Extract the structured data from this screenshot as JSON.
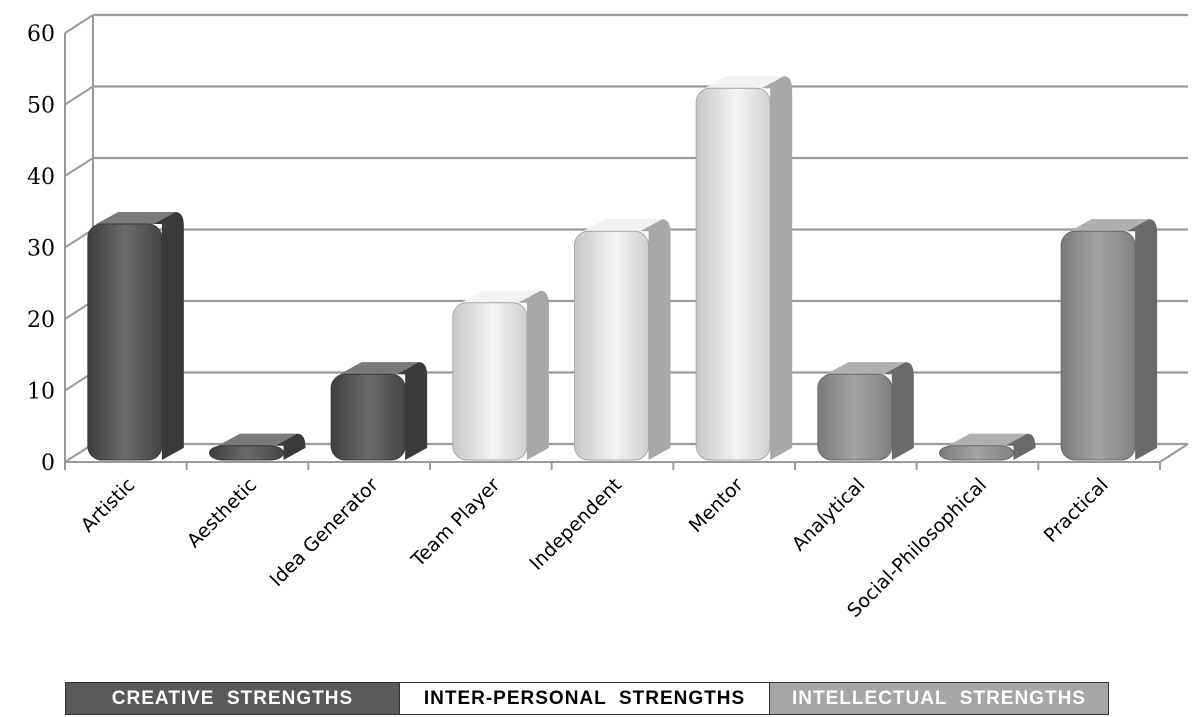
{
  "chart_data": {
    "type": "bar",
    "categories": [
      "Artistic",
      "Aesthetic",
      "Idea Generator",
      "Team Player",
      "Independent",
      "Mentor",
      "Analytical",
      "Social-Philosophical",
      "Practical"
    ],
    "values": [
      33,
      2,
      12,
      22,
      32,
      52,
      12,
      2,
      32
    ],
    "ylim": [
      0,
      60
    ],
    "yticks": [
      0,
      10,
      20,
      30,
      40,
      50,
      60
    ],
    "bar_groups": [
      0,
      0,
      0,
      1,
      1,
      1,
      2,
      2,
      2
    ],
    "grid": true
  },
  "legend": [
    {
      "label": "CREATIVE  STRENGTHS",
      "background": "#595959",
      "text_color": "#ffffff",
      "front": "#595959",
      "side": "#3a3a3a",
      "top": "#7a7a7a"
    },
    {
      "label": "INTER-PERSONAL  STRENGTHS",
      "background": "#ffffff",
      "text_color": "#000000",
      "front": "#dedede",
      "side": "#a8a8a8",
      "top": "#f2f2f2"
    },
    {
      "label": "INTELLECTUAL  STRENGTHS",
      "background": "#a6a6a6",
      "text_color": "#ffffff",
      "front": "#8f8f8f",
      "side": "#6a6a6a",
      "top": "#b0b0b0"
    }
  ]
}
